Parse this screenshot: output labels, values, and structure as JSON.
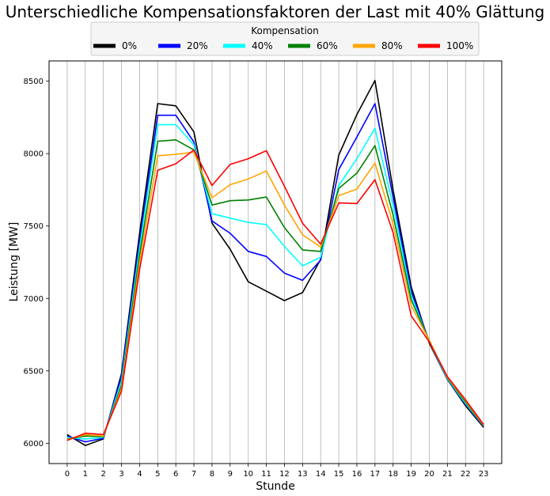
{
  "chart_data": {
    "type": "line",
    "title": "Unterschiedliche Kompensationsfaktoren der Last mit 40% Glättung",
    "xlabel": "Stunde",
    "ylabel": "Leistung [MW]",
    "legend_title": "Kompensation",
    "legend_position": "top-center",
    "grid": "x",
    "xlim": [
      -1,
      24
    ],
    "ylim": [
      5860,
      8640
    ],
    "x": [
      0,
      1,
      2,
      3,
      4,
      5,
      6,
      7,
      8,
      9,
      10,
      11,
      12,
      13,
      14,
      15,
      16,
      17,
      18,
      19,
      20,
      21,
      22,
      23
    ],
    "xticks": [
      "0",
      "1",
      "2",
      "3",
      "4",
      "5",
      "6",
      "7",
      "8",
      "9",
      "10",
      "11",
      "12",
      "13",
      "14",
      "15",
      "16",
      "17",
      "18",
      "19",
      "20",
      "21",
      "22",
      "23"
    ],
    "yticks": [
      6000,
      6500,
      7000,
      7500,
      8000,
      8500
    ],
    "ytick_labels": [
      "6000",
      "6500",
      "7000",
      "7500",
      "8000",
      "8500"
    ],
    "series": [
      {
        "name": "0%",
        "color": "#000000",
        "values": [
          6060,
          5985,
          6030,
          6480,
          7450,
          8345,
          8330,
          8150,
          7520,
          7340,
          7115,
          7050,
          6985,
          7040,
          7270,
          7990,
          8270,
          8505,
          7750,
          7080,
          6690,
          6440,
          6260,
          6110
        ]
      },
      {
        "name": "20%",
        "color": "#0000ff",
        "values": [
          6050,
          6010,
          6035,
          6460,
          7400,
          8265,
          8265,
          8080,
          7535,
          7450,
          7325,
          7290,
          7175,
          7125,
          7265,
          7890,
          8115,
          8345,
          7700,
          7050,
          6700,
          6440,
          6270,
          6115
        ]
      },
      {
        "name": "40%",
        "color": "#00ffff",
        "values": [
          6040,
          6030,
          6040,
          6430,
          7350,
          8200,
          8200,
          8060,
          7585,
          7555,
          7525,
          7510,
          7360,
          7225,
          7285,
          7780,
          7965,
          8175,
          7640,
          7020,
          6700,
          6445,
          6275,
          6120
        ]
      },
      {
        "name": "60%",
        "color": "#008000",
        "values": [
          6030,
          6050,
          6045,
          6400,
          7300,
          8085,
          8095,
          8025,
          7645,
          7675,
          7680,
          7700,
          7490,
          7335,
          7325,
          7760,
          7865,
          8055,
          7575,
          6990,
          6710,
          6450,
          6285,
          6120
        ]
      },
      {
        "name": "80%",
        "color": "#ffa500",
        "values": [
          6025,
          6060,
          6050,
          6380,
          7250,
          7985,
          7995,
          8010,
          7695,
          7785,
          7825,
          7880,
          7645,
          7440,
          7355,
          7710,
          7755,
          7935,
          7515,
          6950,
          6710,
          6455,
          6295,
          6125
        ]
      },
      {
        "name": "100%",
        "color": "#ff0000",
        "values": [
          6020,
          6070,
          6060,
          6360,
          7200,
          7885,
          7930,
          8025,
          7780,
          7925,
          7965,
          8020,
          7775,
          7520,
          7375,
          7660,
          7655,
          7820,
          7455,
          6880,
          6700,
          6460,
          6300,
          6130
        ]
      }
    ]
  }
}
